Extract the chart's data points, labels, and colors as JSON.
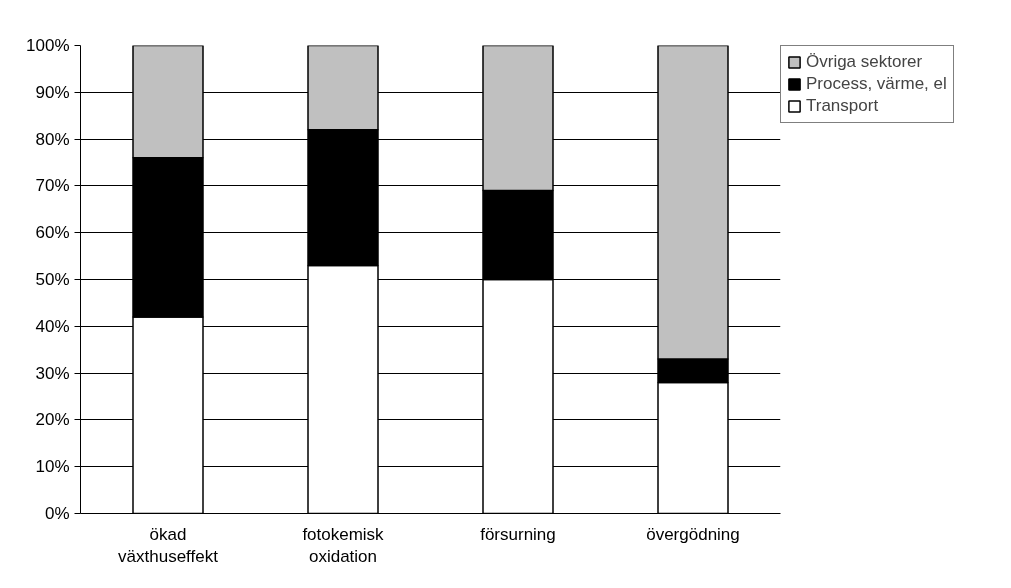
{
  "chart_data": {
    "type": "bar",
    "stacked": true,
    "categories": [
      "ökad\nväxthuseffekt",
      "fotokemisk\noxidation",
      "försurning",
      "övergödning"
    ],
    "series": [
      {
        "name": "Transport",
        "color": "#ffffff",
        "values": [
          42,
          53,
          50,
          28
        ]
      },
      {
        "name": "Process, värme, el",
        "color": "#000000",
        "values": [
          34,
          29,
          19,
          5
        ]
      },
      {
        "name": "Övriga sektorer",
        "color": "#c0c0c0",
        "values": [
          24,
          18,
          31,
          67
        ]
      }
    ],
    "ylim": [
      0,
      100
    ],
    "yticks": [
      {
        "value": 0,
        "label": "0%"
      },
      {
        "value": 10,
        "label": "10%"
      },
      {
        "value": 20,
        "label": "20%"
      },
      {
        "value": 30,
        "label": "30%"
      },
      {
        "value": 40,
        "label": "40%"
      },
      {
        "value": 50,
        "label": "50%"
      },
      {
        "value": 60,
        "label": "60%"
      },
      {
        "value": 70,
        "label": "70%"
      },
      {
        "value": 80,
        "label": "80%"
      },
      {
        "value": 90,
        "label": "90%"
      },
      {
        "value": 100,
        "label": "100%"
      }
    ],
    "grid": "y",
    "legend": "top right"
  }
}
